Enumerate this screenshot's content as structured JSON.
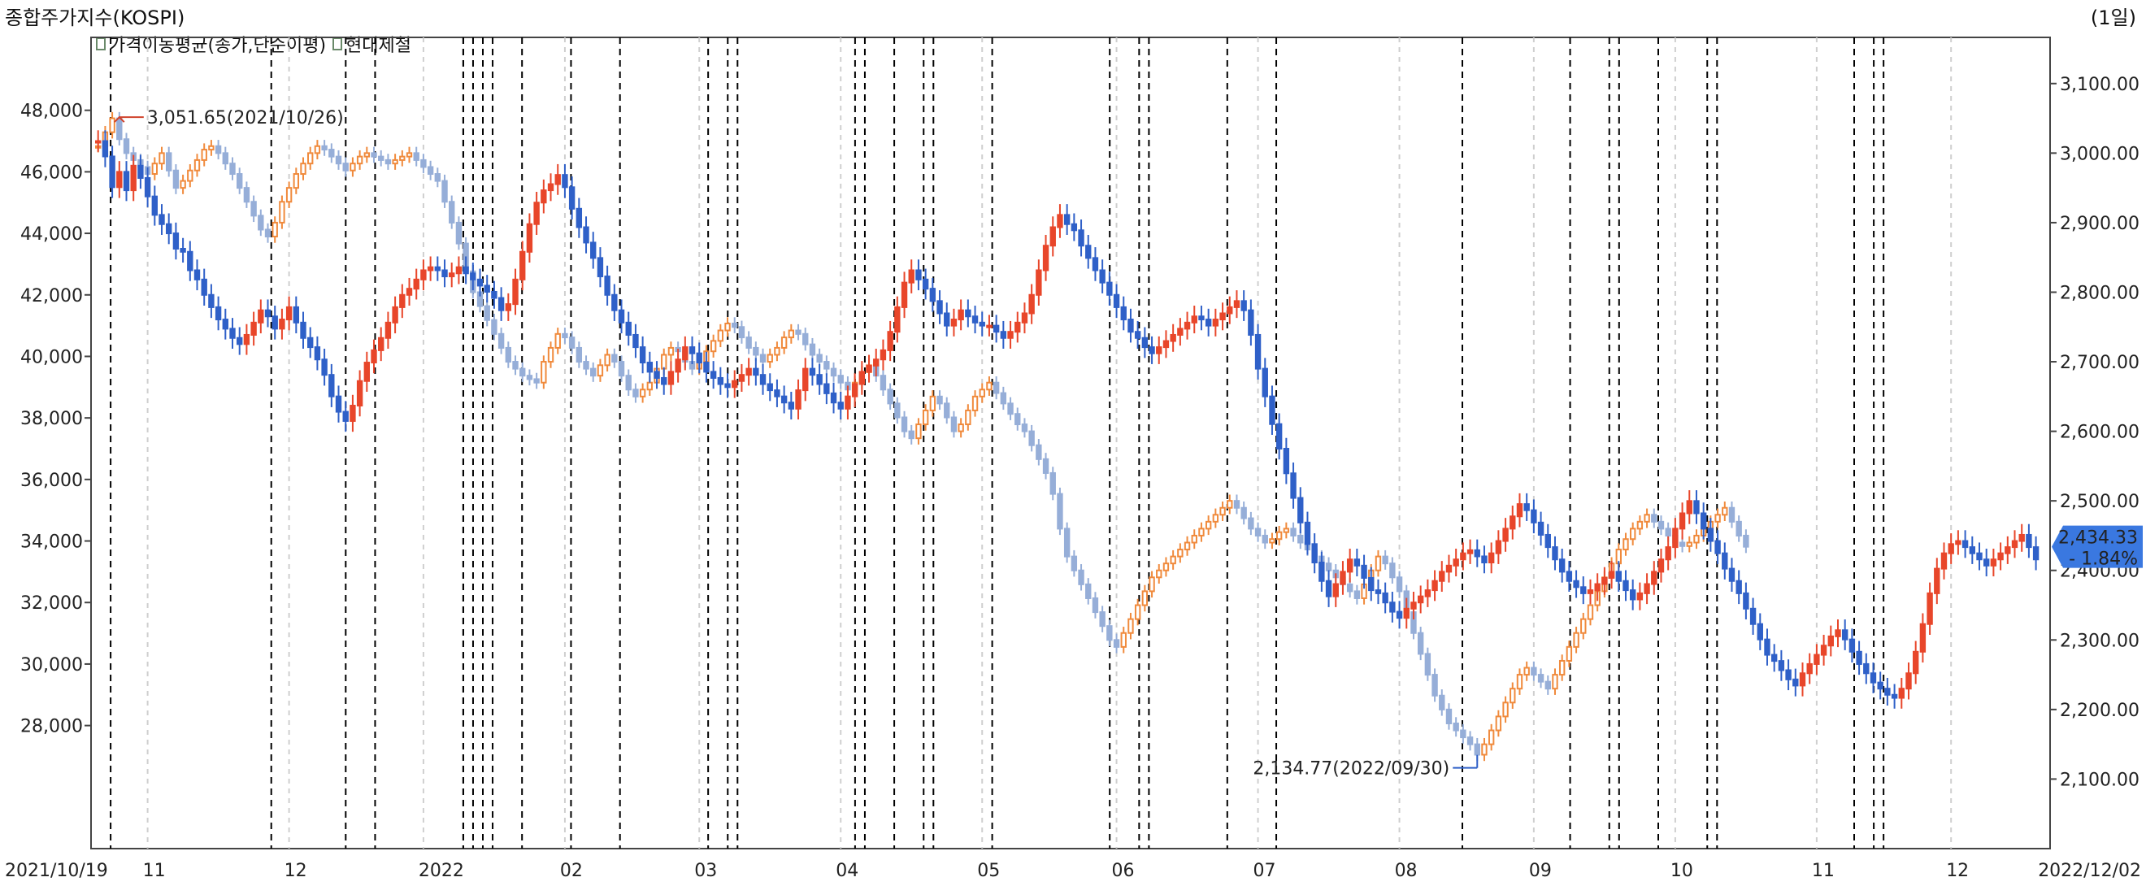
{
  "header": {
    "title": "종합주가지수(KOSPI)",
    "period": "(1일)"
  },
  "legend": [
    {
      "label": "가격이동평균(종가,단순이평)"
    },
    {
      "label": "현대제철"
    }
  ],
  "annotations": {
    "high": "3,051.65(2021/10/26)",
    "low": "2,134.77(2022/09/30)",
    "last_price": "2,434.33",
    "last_change": "- 1.84%"
  },
  "colors": {
    "up": "#e8462a",
    "down": "#2f60c8",
    "kospi_up": "#f08a3c",
    "kospi_down": "#96aed8",
    "high_label": "#d0432b",
    "low_label": "#2f60c8",
    "badge_bg": "#3a78e0"
  },
  "chart_data": {
    "type": "candlestick",
    "x_start_label": "2021/10/19",
    "x_end_label": "2022/12/02",
    "x_month_labels": [
      "11",
      "12",
      "2022",
      "02",
      "03",
      "04",
      "05",
      "06",
      "07",
      "08",
      "09",
      "10",
      "11",
      "12"
    ],
    "left_axis": {
      "label": "현대제철",
      "ticks": [
        "28,000",
        "30,000",
        "32,000",
        "34,000",
        "36,000",
        "38,000",
        "40,000",
        "42,000",
        "44,000",
        "46,000",
        "48,000"
      ],
      "ylim": [
        24000,
        50000
      ]
    },
    "right_axis": {
      "label": "종합주가지수(KOSPI)",
      "ticks": [
        "2,100.00",
        "2,200.00",
        "2,300.00",
        "2,400.00",
        "2,500.00",
        "2,600.00",
        "2,700.00",
        "2,800.00",
        "2,900.00",
        "3,000.00",
        "3,100.00"
      ],
      "ylim": [
        2000,
        3150
      ]
    },
    "series": [
      {
        "name": "현대제철",
        "axis": "left",
        "close": [
          47000,
          46500,
          45500,
          46000,
          45400,
          46200,
          45800,
          45200,
          44600,
          44300,
          44000,
          43500,
          43400,
          42800,
          42500,
          42000,
          41600,
          41200,
          40900,
          40600,
          40400,
          40700,
          41100,
          41500,
          41300,
          40900,
          41200,
          41600,
          41100,
          40600,
          40300,
          39900,
          39400,
          38700,
          38200,
          37900,
          38400,
          39200,
          39800,
          40200,
          40600,
          41100,
          41600,
          42000,
          42200,
          42500,
          42800,
          42900,
          42800,
          42600,
          42700,
          42900,
          42700,
          42500,
          42300,
          42100,
          41900,
          41500,
          41700,
          42500,
          43400,
          44300,
          45000,
          45400,
          45600,
          45900,
          45500,
          44800,
          44200,
          43700,
          43200,
          42600,
          42000,
          41500,
          41100,
          40700,
          40300,
          39800,
          39500,
          39300,
          39100,
          39500,
          39900,
          40300,
          40100,
          39800,
          39500,
          39300,
          39100,
          39000,
          39200,
          39400,
          39600,
          39400,
          39100,
          38900,
          38700,
          38500,
          38300,
          38900,
          39600,
          39400,
          39100,
          38800,
          38500,
          38300,
          38700,
          39100,
          39500,
          39700,
          39900,
          40200,
          40800,
          41600,
          42400,
          42800,
          42500,
          42200,
          41800,
          41400,
          41000,
          41200,
          41500,
          41300,
          41100,
          41000,
          41000,
          40800,
          40600,
          40800,
          41100,
          41400,
          42000,
          42800,
          43600,
          44200,
          44600,
          44300,
          44100,
          43600,
          43200,
          42800,
          42400,
          42000,
          41600,
          41200,
          40800,
          40600,
          40300,
          40100,
          40300,
          40500,
          40700,
          40900,
          41100,
          41300,
          41200,
          41000,
          41200,
          41400,
          41600,
          41800,
          41500,
          40700,
          39600,
          38700,
          37800,
          37000,
          36200,
          35400,
          34600,
          33900,
          33300,
          32700,
          32200,
          32600,
          33000,
          33400,
          33200,
          32800,
          32400,
          32300,
          32000,
          31700,
          31500,
          31800,
          32000,
          32200,
          32400,
          32700,
          33000,
          33200,
          33400,
          33600,
          33700,
          33500,
          33300,
          33600,
          34000,
          34400,
          34800,
          35200,
          35000,
          34600,
          34200,
          33800,
          33400,
          33000,
          32700,
          32500,
          32300,
          32400,
          32600,
          32800,
          33000,
          32700,
          32400,
          32100,
          32300,
          32600,
          33000,
          33400,
          33800,
          34400,
          34900,
          35300,
          34900,
          34400,
          34000,
          33600,
          33100,
          32700,
          32300,
          31800,
          31300,
          30800,
          30300,
          30100,
          29800,
          29500,
          29300,
          29700,
          30000,
          30300,
          30600,
          30900,
          31100,
          30800,
          30400,
          30000,
          29700,
          29400,
          29200,
          29000,
          28900,
          29200,
          29700,
          30400,
          31300,
          32300,
          33100,
          33600,
          33900,
          34000,
          33800,
          33600,
          33400,
          33200,
          33400,
          33600,
          33800,
          34000,
          34200,
          33800,
          33400
        ]
      },
      {
        "name": "종합주가지수(KOSPI)",
        "axis": "right",
        "close": [
          3010,
          3030,
          3050,
          3020,
          3000,
          2990,
          2980,
          2970,
          2985,
          3000,
          2975,
          2950,
          2960,
          2975,
          2990,
          3005,
          3010,
          3000,
          2985,
          2970,
          2950,
          2930,
          2910,
          2890,
          2880,
          2900,
          2930,
          2950,
          2970,
          2985,
          3000,
          3010,
          3005,
          2995,
          2985,
          2975,
          2985,
          2995,
          3000,
          2995,
          2990,
          2985,
          2990,
          2995,
          3000,
          2990,
          2980,
          2970,
          2960,
          2930,
          2900,
          2870,
          2830,
          2800,
          2780,
          2760,
          2740,
          2720,
          2700,
          2690,
          2680,
          2675,
          2670,
          2700,
          2720,
          2740,
          2735,
          2720,
          2700,
          2690,
          2680,
          2695,
          2710,
          2700,
          2680,
          2660,
          2650,
          2660,
          2670,
          2690,
          2710,
          2720,
          2715,
          2700,
          2690,
          2700,
          2715,
          2730,
          2745,
          2755,
          2750,
          2735,
          2720,
          2710,
          2700,
          2710,
          2720,
          2735,
          2745,
          2740,
          2725,
          2710,
          2700,
          2690,
          2680,
          2670,
          2660,
          2670,
          2685,
          2695,
          2680,
          2660,
          2640,
          2620,
          2600,
          2590,
          2610,
          2630,
          2650,
          2640,
          2620,
          2600,
          2610,
          2630,
          2650,
          2660,
          2670,
          2655,
          2640,
          2625,
          2610,
          2600,
          2580,
          2560,
          2540,
          2510,
          2460,
          2420,
          2400,
          2380,
          2360,
          2340,
          2320,
          2300,
          2290,
          2310,
          2330,
          2350,
          2370,
          2390,
          2400,
          2410,
          2420,
          2430,
          2440,
          2450,
          2460,
          2470,
          2480,
          2490,
          2500,
          2490,
          2475,
          2460,
          2450,
          2440,
          2445,
          2455,
          2460,
          2450,
          2440,
          2430,
          2420,
          2410,
          2400,
          2390,
          2380,
          2370,
          2360,
          2380,
          2400,
          2420,
          2410,
          2390,
          2370,
          2340,
          2310,
          2280,
          2250,
          2220,
          2200,
          2180,
          2170,
          2160,
          2150,
          2135,
          2150,
          2170,
          2190,
          2210,
          2230,
          2250,
          2260,
          2250,
          2240,
          2230,
          2250,
          2270,
          2290,
          2310,
          2330,
          2350,
          2370,
          2390,
          2410,
          2430,
          2445,
          2460,
          2470,
          2480,
          2470,
          2460,
          2450,
          2440,
          2435,
          2440,
          2450,
          2460,
          2470,
          2480,
          2490,
          2470,
          2450,
          2434
        ]
      }
    ],
    "high_point": {
      "value": 3051.65,
      "date": "2021/10/26"
    },
    "low_point": {
      "value": 2134.77,
      "date": "2022/09/30"
    },
    "grid": true
  }
}
